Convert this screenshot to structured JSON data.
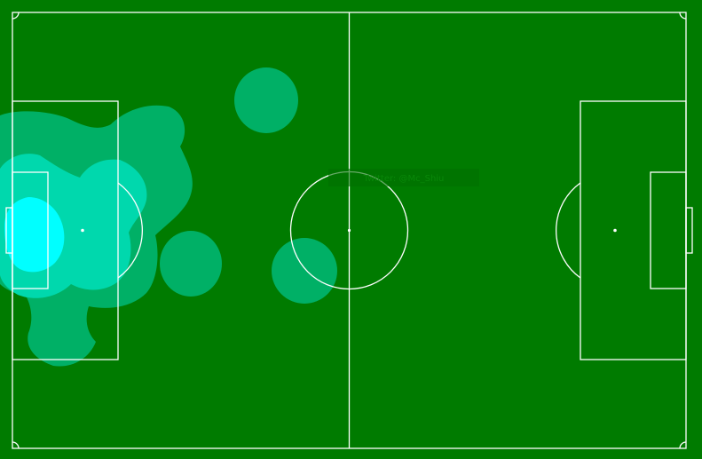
{
  "colors": {
    "pitch": "#007b00",
    "lines": "#ffffff",
    "heat_low": "#00b066",
    "heat_mid": "#00d8ad",
    "heat_high": "#00ffff"
  },
  "watermark": {
    "text": "Twitter: @Mc_Shiu"
  },
  "heatmap": {
    "description_levels": [
      "low",
      "mid",
      "high"
    ]
  }
}
